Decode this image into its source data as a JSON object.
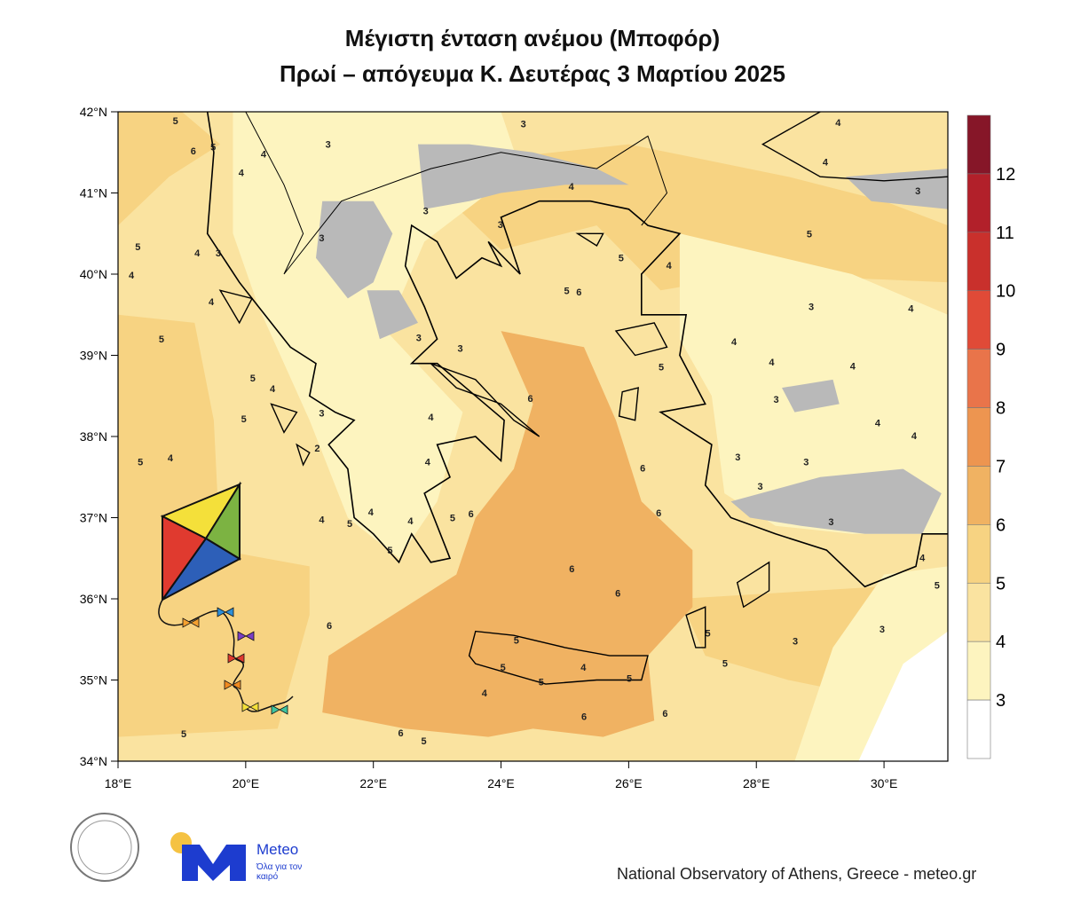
{
  "title": {
    "line1": "Μέγιστη ένταση ανέμου (Μποφόρ)",
    "line2": "Πρωί – απόγευμα Κ. Δευτέρας 3 Μαρτίου 2025"
  },
  "map": {
    "lon_range": [
      18,
      31
    ],
    "lat_range": [
      34,
      42
    ],
    "lon_ticks": [
      "18°E",
      "20°E",
      "22°E",
      "24°E",
      "26°E",
      "28°E",
      "30°E"
    ],
    "lat_ticks": [
      "42°N",
      "41°N",
      "40°N",
      "39°N",
      "38°N",
      "37°N",
      "36°N",
      "35°N",
      "34°N"
    ],
    "terrain_mask_color": "#b9b9b9",
    "contour_labels": [
      [
        18.9,
        41.89,
        5
      ],
      [
        19.18,
        41.52,
        6
      ],
      [
        19.49,
        41.57,
        5
      ],
      [
        20.28,
        41.48,
        4
      ],
      [
        21.29,
        41.6,
        3
      ],
      [
        19.93,
        41.25,
        4
      ],
      [
        24.35,
        41.85,
        3
      ],
      [
        25.1,
        41.08,
        4
      ],
      [
        22.82,
        40.78,
        3
      ],
      [
        23.99,
        40.61,
        3
      ],
      [
        21.19,
        40.45,
        3
      ],
      [
        19.24,
        40.26,
        4
      ],
      [
        19.57,
        40.26,
        3
      ],
      [
        18.31,
        40.34,
        5
      ],
      [
        18.21,
        39.99,
        4
      ],
      [
        19.46,
        39.66,
        4
      ],
      [
        18.68,
        39.2,
        5
      ],
      [
        20.11,
        38.72,
        5
      ],
      [
        20.42,
        38.59,
        4
      ],
      [
        19.97,
        38.22,
        5
      ],
      [
        18.35,
        37.69,
        5
      ],
      [
        18.82,
        37.74,
        4
      ],
      [
        21.31,
        35.67,
        6
      ],
      [
        19.03,
        34.34,
        5
      ],
      [
        22.43,
        34.35,
        6
      ],
      [
        22.79,
        34.25,
        5
      ],
      [
        23.74,
        34.84,
        4
      ],
      [
        24.03,
        35.16,
        5
      ],
      [
        24.63,
        34.98,
        5
      ],
      [
        25.3,
        34.55,
        6
      ],
      [
        26.57,
        34.59,
        6
      ],
      [
        25.29,
        35.16,
        4
      ],
      [
        26.01,
        35.02,
        5
      ],
      [
        24.24,
        35.49,
        5
      ],
      [
        24.46,
        38.47,
        6
      ],
      [
        25.11,
        36.37,
        6
      ],
      [
        25.83,
        36.07,
        6
      ],
      [
        26.22,
        37.61,
        6
      ],
      [
        26.47,
        37.06,
        6
      ],
      [
        23.53,
        37.05,
        6
      ],
      [
        23.24,
        37.0,
        5
      ],
      [
        22.26,
        36.6,
        5
      ],
      [
        22.58,
        36.96,
        4
      ],
      [
        21.96,
        37.07,
        4
      ],
      [
        21.19,
        36.98,
        4
      ],
      [
        21.63,
        36.93,
        5
      ],
      [
        22.85,
        37.69,
        4
      ],
      [
        22.9,
        38.24,
        4
      ],
      [
        22.71,
        39.22,
        3
      ],
      [
        23.36,
        39.09,
        3
      ],
      [
        25.03,
        39.8,
        5
      ],
      [
        25.88,
        40.2,
        5
      ],
      [
        26.63,
        40.11,
        4
      ],
      [
        28.83,
        40.5,
        5
      ],
      [
        29.08,
        41.38,
        4
      ],
      [
        29.28,
        41.87,
        4
      ],
      [
        30.53,
        41.03,
        3
      ],
      [
        28.86,
        39.6,
        3
      ],
      [
        30.42,
        39.58,
        4
      ],
      [
        29.51,
        38.87,
        4
      ],
      [
        28.24,
        38.92,
        4
      ],
      [
        28.31,
        38.46,
        3
      ],
      [
        27.65,
        39.17,
        4
      ],
      [
        27.71,
        37.75,
        3
      ],
      [
        28.06,
        37.39,
        3
      ],
      [
        29.9,
        38.17,
        4
      ],
      [
        30.47,
        38.01,
        4
      ],
      [
        28.78,
        37.69,
        3
      ],
      [
        29.17,
        36.95,
        3
      ],
      [
        28.61,
        35.48,
        3
      ],
      [
        29.97,
        35.63,
        3
      ],
      [
        30.6,
        36.51,
        4
      ],
      [
        30.83,
        36.17,
        5
      ],
      [
        27.51,
        35.21,
        5
      ],
      [
        27.24,
        35.58,
        5
      ],
      [
        21.19,
        38.29,
        3
      ],
      [
        21.12,
        37.86,
        2
      ],
      [
        26.51,
        38.86,
        5
      ],
      [
        25.22,
        39.78,
        6
      ]
    ]
  },
  "colorbar": {
    "labels": [
      "12",
      "11",
      "10",
      "9",
      "8",
      "7",
      "6",
      "5",
      "4",
      "3"
    ],
    "colors": [
      "#861628",
      "#b2202a",
      "#c9302c",
      "#e04a37",
      "#e9744a",
      "#ed9550",
      "#f0b262",
      "#f7d382",
      "#fae3a0",
      "#fdf4bf",
      "#ffffff"
    ]
  },
  "logos": {
    "meteo_name": "Meteo",
    "meteo_tagline": "Όλα για τον καιρό",
    "meteo_accent": "#f5c242",
    "meteo_blue": "#1d3ccf"
  },
  "footer": {
    "credit": "National Observatory of Athens, Greece - meteo.gr"
  }
}
